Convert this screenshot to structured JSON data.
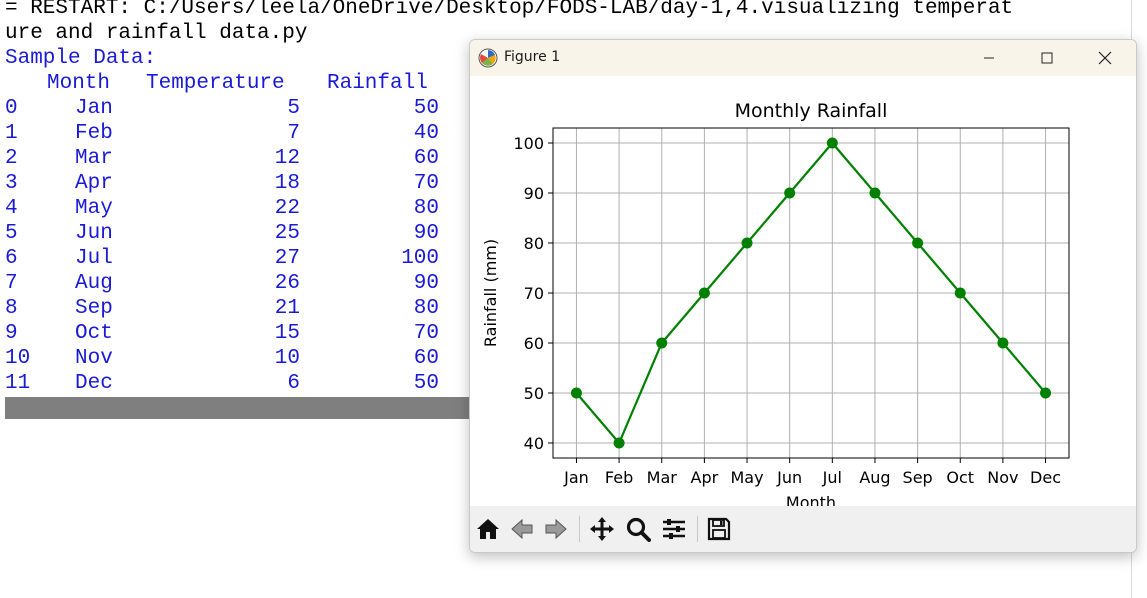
{
  "shell": {
    "restart_line1": "= RESTART: C:/Users/leela/OneDrive/Desktop/FODS-LAB/day-1,4.visualizing temperat",
    "restart_line2": "ure and rainfall data.py",
    "sample_label": "Sample Data:",
    "columns": [
      "Month",
      "Temperature",
      "Rainfall"
    ],
    "rows": [
      {
        "idx": "0",
        "month": "Jan",
        "temp": "5",
        "rain": "50"
      },
      {
        "idx": "1",
        "month": "Feb",
        "temp": "7",
        "rain": "40"
      },
      {
        "idx": "2",
        "month": "Mar",
        "temp": "12",
        "rain": "60"
      },
      {
        "idx": "3",
        "month": "Apr",
        "temp": "18",
        "rain": "70"
      },
      {
        "idx": "4",
        "month": "May",
        "temp": "22",
        "rain": "80"
      },
      {
        "idx": "5",
        "month": "Jun",
        "temp": "25",
        "rain": "90"
      },
      {
        "idx": "6",
        "month": "Jul",
        "temp": "27",
        "rain": "100"
      },
      {
        "idx": "7",
        "month": "Aug",
        "temp": "26",
        "rain": "90"
      },
      {
        "idx": "8",
        "month": "Sep",
        "temp": "21",
        "rain": "80"
      },
      {
        "idx": "9",
        "month": "Oct",
        "temp": "15",
        "rain": "70"
      },
      {
        "idx": "10",
        "month": "Nov",
        "temp": "10",
        "rain": "60"
      },
      {
        "idx": "11",
        "month": "Dec",
        "temp": "6",
        "rain": "50"
      }
    ]
  },
  "window": {
    "title": "Figure 1",
    "icons": {
      "app": "matplotlib-icon",
      "minimize": "minimize-icon",
      "maximize": "maximize-icon",
      "close": "close-icon"
    }
  },
  "toolbar": {
    "icons": [
      "home-icon",
      "back-arrow-icon",
      "forward-arrow-icon",
      "pan-icon",
      "zoom-icon",
      "configure-subplots-icon",
      "save-icon"
    ]
  },
  "colors": {
    "line": "#008000",
    "shell_text_blue": "#1a1ad6",
    "grid": "#b0b0b0"
  },
  "chart_data": {
    "type": "line",
    "title": "Monthly Rainfall",
    "xlabel": "Month",
    "ylabel": "Rainfall (mm)",
    "categories": [
      "Jan",
      "Feb",
      "Mar",
      "Apr",
      "May",
      "Jun",
      "Jul",
      "Aug",
      "Sep",
      "Oct",
      "Nov",
      "Dec"
    ],
    "series": [
      {
        "values": [
          50,
          40,
          60,
          70,
          80,
          90,
          100,
          90,
          80,
          70,
          60,
          50
        ]
      }
    ],
    "yticks": [
      40,
      50,
      60,
      70,
      80,
      90,
      100
    ],
    "ylim": [
      37,
      103
    ],
    "grid": true,
    "marker": "circle"
  }
}
